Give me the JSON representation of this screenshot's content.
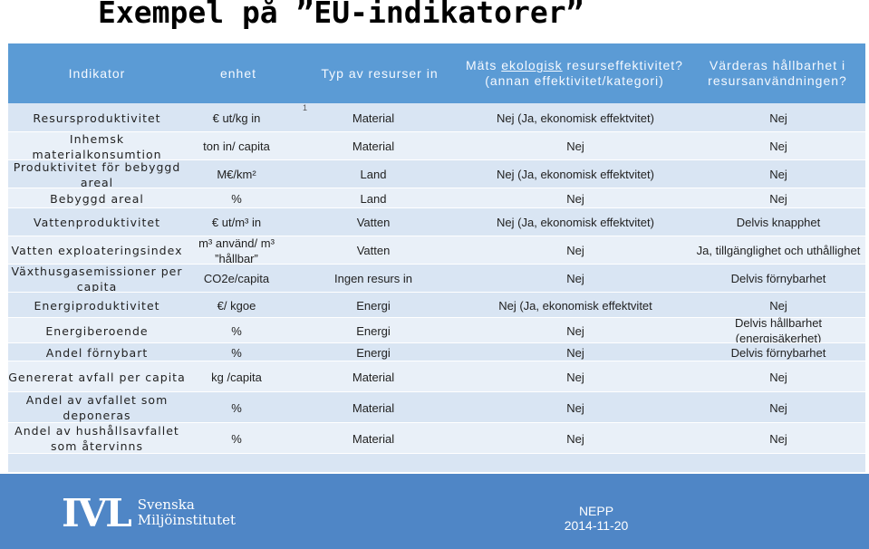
{
  "title": "Exempel på ”EU-indikatorer”",
  "header": {
    "col1": "Indikator",
    "col2": "enhet",
    "col3": "Typ av resurser in",
    "col4_prefix": "Mäts ",
    "col4_underlined": "ekologisk",
    "col4_rest": " resurseffektivitet?",
    "col4_line2": "(annan effektivitet/kategori)",
    "col5": "Värderas hållbarhet i resursanvändningen?"
  },
  "footnote_mark": "1",
  "rows": [
    {
      "indicator": "Resursproduktivitet",
      "unit": "€ ut/kg in",
      "resource": "Material",
      "measured": "Nej (Ja, ekonomisk effektvitet)",
      "sustainability": "Nej"
    },
    {
      "indicator": "Inhemsk materialkonsumtion",
      "unit": "ton in/ capita",
      "resource": "Material",
      "measured": "Nej",
      "sustainability": "Nej"
    },
    {
      "indicator": "Produktivitet för bebyggd areal",
      "unit": "M€/km²",
      "resource": "Land",
      "measured": "Nej (Ja, ekonomisk effektvitet)",
      "sustainability": "Nej"
    },
    {
      "indicator": "Bebyggd areal",
      "unit": "%",
      "resource": "Land",
      "measured": "Nej",
      "sustainability": "Nej"
    },
    {
      "indicator": "Vattenproduktivitet",
      "unit": "€ ut/m³ in",
      "resource": "Vatten",
      "measured": "Nej (Ja, ekonomisk effektvitet)",
      "sustainability": "Delvis knapphet"
    },
    {
      "indicator": "Vatten exploateringsindex",
      "unit": "m³ använd/ m³ ”hållbar”",
      "resource": "Vatten",
      "measured": "Nej",
      "sustainability": "Ja, tillgänglighet och uthållighet"
    },
    {
      "indicator": "Växthusgasemissioner per capita",
      "unit": "CO2e/capita",
      "resource": "Ingen resurs in",
      "measured": "Nej",
      "sustainability": "Delvis förnybarhet"
    },
    {
      "indicator": "Energiproduktivitet",
      "unit": "€/ kgoe",
      "resource": "Energi",
      "measured": "Nej (Ja, ekonomisk effektvitet",
      "sustainability": "Nej"
    },
    {
      "indicator": "Energiberoende",
      "unit": "%",
      "resource": "Energi",
      "measured": "Nej",
      "sustainability": "Delvis hållbarhet (energisäkerhet)"
    },
    {
      "indicator": "Andel förnybart",
      "unit": "%",
      "resource": "Energi",
      "measured": "Nej",
      "sustainability": "Delvis förnybarhet"
    },
    {
      "indicator": "Genererat avfall per capita",
      "unit": "kg /capita",
      "resource": "Material",
      "measured": "Nej",
      "sustainability": "Nej"
    },
    {
      "indicator": "Andel av avfallet som deponeras",
      "unit": "%",
      "resource": "Material",
      "measured": "Nej",
      "sustainability": "Nej"
    },
    {
      "indicator": "Andel av hushållsavfallet som återvinns",
      "unit": "%",
      "resource": "Material",
      "measured": "Nej",
      "sustainability": "Nej"
    }
  ],
  "footer": {
    "logo_mark": "IVL",
    "logo_line1": "Svenska",
    "logo_line2": "Miljöinstitutet",
    "org": "NEPP",
    "date": "2014-11-20"
  }
}
